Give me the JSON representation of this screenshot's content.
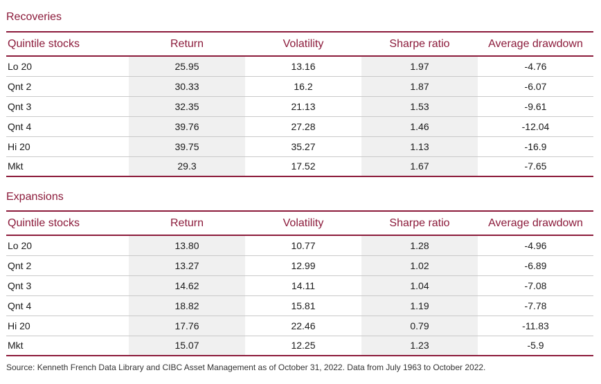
{
  "recoveries": {
    "title": "Recoveries",
    "headers": [
      "Quintile stocks",
      "Return",
      "Volatility",
      "Sharpe ratio",
      "Average drawdown"
    ],
    "rows": [
      [
        "Lo 20",
        "25.95",
        "13.16",
        "1.97",
        "-4.76"
      ],
      [
        "Qnt 2",
        "30.33",
        "16.2",
        "1.87",
        "-6.07"
      ],
      [
        "Qnt 3",
        "32.35",
        "21.13",
        "1.53",
        "-9.61"
      ],
      [
        "Qnt 4",
        "39.76",
        "27.28",
        "1.46",
        "-12.04"
      ],
      [
        "Hi 20",
        "39.75",
        "35.27",
        "1.13",
        "-16.9"
      ],
      [
        "Mkt",
        "29.3",
        "17.52",
        "1.67",
        "-7.65"
      ]
    ]
  },
  "expansions": {
    "title": "Expansions",
    "headers": [
      "Quintile stocks",
      "Return",
      "Volatility",
      "Sharpe ratio",
      "Average drawdown"
    ],
    "rows": [
      [
        "Lo 20",
        "13.80",
        "10.77",
        "1.28",
        "-4.96"
      ],
      [
        "Qnt 2",
        "13.27",
        "12.99",
        "1.02",
        "-6.89"
      ],
      [
        "Qnt 3",
        "14.62",
        "14.11",
        "1.04",
        "-7.08"
      ],
      [
        "Qnt 4",
        "18.82",
        "15.81",
        "1.19",
        "-7.78"
      ],
      [
        "Hi 20",
        "17.76",
        "22.46",
        "0.79",
        "-11.83"
      ],
      [
        "Mkt",
        "15.07",
        "12.25",
        "1.23",
        "-5.9"
      ]
    ]
  },
  "source": "Source: Kenneth French Data Library and CIBC Asset Management as of October 31, 2022. Data from July 1963 to October 2022.",
  "colors": {
    "accent": "#8b1a3a",
    "shade": "#f0f0f0",
    "rule": "#c9c9c9"
  }
}
